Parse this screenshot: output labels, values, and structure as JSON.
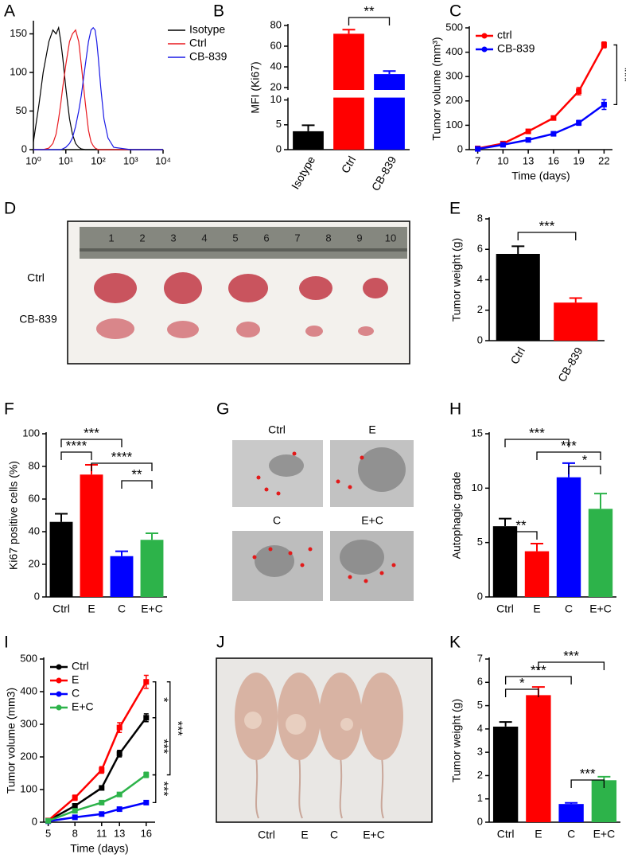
{
  "chart_data": [
    {
      "panel": "A",
      "type": "line",
      "x_scale": "log",
      "x": [
        1,
        1.5,
        2,
        3,
        4,
        5,
        6,
        7,
        8,
        10,
        13,
        16,
        20,
        25,
        30,
        40,
        50,
        60,
        70,
        80,
        90,
        100,
        120,
        150,
        200,
        300,
        1000,
        10000
      ],
      "series": [
        {
          "name": "Isotype",
          "color": "#000000",
          "values": [
            10,
            60,
            100,
            140,
            155,
            150,
            158,
            140,
            120,
            80,
            40,
            20,
            8,
            3,
            1,
            0,
            0,
            0,
            0,
            0,
            0,
            0,
            0,
            0,
            0,
            0,
            0,
            0
          ]
        },
        {
          "name": "Ctrl",
          "color": "#e8191e",
          "values": [
            0,
            0,
            0,
            2,
            8,
            20,
            40,
            60,
            80,
            110,
            140,
            150,
            155,
            140,
            110,
            60,
            25,
            10,
            5,
            2,
            1,
            0,
            0,
            0,
            0,
            0,
            0,
            0
          ]
        },
        {
          "name": "CB-839",
          "color": "#1a1ae6",
          "values": [
            0,
            0,
            0,
            0,
            0,
            0,
            0,
            0,
            1,
            3,
            8,
            15,
            30,
            50,
            70,
            110,
            140,
            155,
            158,
            155,
            140,
            120,
            80,
            40,
            15,
            3,
            0,
            0
          ]
        }
      ],
      "xlim": [
        1,
        10000
      ],
      "xticks": [
        {
          "value": 1,
          "label": "10⁰"
        },
        {
          "value": 10,
          "label": "10¹"
        },
        {
          "value": 100,
          "label": "10²"
        },
        {
          "value": 1000,
          "label": "10³"
        },
        {
          "value": 10000,
          "label": "10⁴"
        }
      ],
      "ylim": [
        0,
        165
      ],
      "yticks": [
        0,
        50,
        100,
        150
      ],
      "legend": "upper right"
    },
    {
      "panel": "B",
      "type": "bar",
      "ylabel": "MFI (Ki67)",
      "categories": [
        "Isotype",
        "Ctrl",
        "CB-839"
      ],
      "values": [
        3.7,
        72,
        33
      ],
      "errors": [
        1.2,
        4,
        3
      ],
      "colors": [
        "#000000",
        "#ff0000",
        "#0000ff"
      ],
      "ylim": [
        0,
        80
      ],
      "ybreak": [
        10,
        20
      ],
      "yticks": [
        0,
        5,
        10,
        20,
        40,
        60,
        80
      ],
      "annotations": [
        "**"
      ]
    },
    {
      "panel": "C",
      "type": "line",
      "xlabel": "Time (days)",
      "ylabel": "Tumor volume (mm³)",
      "markers": true,
      "x": [
        7,
        10,
        13,
        16,
        19,
        22
      ],
      "series": [
        {
          "name": "ctrl",
          "color": "#ff0000",
          "values": [
            5,
            25,
            75,
            130,
            240,
            430
          ],
          "errors": [
            2,
            3,
            5,
            8,
            15,
            12
          ]
        },
        {
          "name": "CB-839",
          "color": "#0000ff",
          "values": [
            3,
            20,
            40,
            65,
            110,
            185
          ],
          "errors": [
            2,
            3,
            4,
            6,
            10,
            20
          ]
        }
      ],
      "xlim": [
        6,
        23
      ],
      "xticks": [
        7,
        10,
        13,
        16,
        19,
        22
      ],
      "ylim": [
        0,
        500
      ],
      "yticks": [
        0,
        100,
        200,
        300,
        400,
        500
      ],
      "legend": "upper left",
      "annotations": [
        "***"
      ]
    },
    {
      "panel": "E",
      "type": "bar",
      "ylabel": "Tumor weight (g)",
      "categories": [
        "Ctrl",
        "CB-839"
      ],
      "values": [
        5.7,
        2.5
      ],
      "errors": [
        0.5,
        0.3
      ],
      "colors": [
        "#000000",
        "#ff0000"
      ],
      "ylim": [
        0,
        8
      ],
      "yticks": [
        0,
        2,
        4,
        6,
        8
      ],
      "annotations": [
        "***"
      ]
    },
    {
      "panel": "F",
      "type": "bar",
      "ylabel": "Ki67 positive cells (%)",
      "categories": [
        "Ctrl",
        "E",
        "C",
        "E+C"
      ],
      "values": [
        46,
        75,
        25,
        35
      ],
      "errors": [
        5,
        6,
        3,
        4
      ],
      "colors": [
        "#000000",
        "#ff0000",
        "#0000ff",
        "#2db34a"
      ],
      "ylim": [
        0,
        100
      ],
      "yticks": [
        0,
        20,
        40,
        60,
        80,
        100
      ],
      "annotations": [
        "***",
        "****",
        "****",
        "**"
      ]
    },
    {
      "panel": "H",
      "type": "bar",
      "ylabel": "Autophagic grade",
      "categories": [
        "Ctrl",
        "E",
        "C",
        "E+C"
      ],
      "values": [
        6.5,
        4.2,
        11,
        8.1
      ],
      "errors": [
        0.7,
        0.7,
        1.3,
        1.4
      ],
      "colors": [
        "#000000",
        "#ff0000",
        "#0000ff",
        "#2db34a"
      ],
      "ylim": [
        0,
        15
      ],
      "yticks": [
        0,
        5,
        10,
        15
      ],
      "annotations": [
        "***",
        "***",
        "*",
        "**"
      ]
    },
    {
      "panel": "I",
      "type": "line",
      "xlabel": "Time (days)",
      "ylabel": "Tumor volume (mm3)",
      "markers": true,
      "x": [
        5,
        8,
        11,
        13,
        16
      ],
      "series": [
        {
          "name": "Ctrl",
          "color": "#000000",
          "values": [
            5,
            50,
            105,
            210,
            320
          ],
          "errors": [
            2,
            5,
            6,
            10,
            12
          ]
        },
        {
          "name": "E",
          "color": "#ff0000",
          "values": [
            5,
            75,
            160,
            290,
            430
          ],
          "errors": [
            2,
            8,
            10,
            15,
            20
          ]
        },
        {
          "name": "C",
          "color": "#0000ff",
          "values": [
            3,
            15,
            25,
            40,
            60
          ],
          "errors": [
            1,
            2,
            3,
            4,
            5
          ]
        },
        {
          "name": "E+C",
          "color": "#2db34a",
          "values": [
            4,
            35,
            60,
            85,
            145
          ],
          "errors": [
            1,
            4,
            5,
            6,
            8
          ]
        }
      ],
      "xlim": [
        4.5,
        17
      ],
      "xticks": [
        5,
        8,
        11,
        13,
        16
      ],
      "ylim": [
        0,
        500
      ],
      "yticks": [
        0,
        100,
        200,
        300,
        400,
        500
      ],
      "legend": "upper left",
      "annotations": [
        "*",
        "***",
        "***",
        "***"
      ]
    },
    {
      "panel": "K",
      "type": "bar",
      "ylabel": "Tumor weight (g)",
      "categories": [
        "Ctrl",
        "E",
        "C",
        "E+C"
      ],
      "values": [
        4.1,
        5.45,
        0.78,
        1.8
      ],
      "errors": [
        0.2,
        0.35,
        0.05,
        0.15
      ],
      "colors": [
        "#000000",
        "#ff0000",
        "#0000ff",
        "#2db34a"
      ],
      "ylim": [
        0,
        7
      ],
      "yticks": [
        0,
        1,
        2,
        3,
        4,
        5,
        6,
        7
      ],
      "annotations": [
        "***",
        "***",
        "*",
        "***"
      ]
    }
  ],
  "photos": [
    {
      "panel": "D",
      "labels": [
        "Ctrl",
        "CB-839"
      ],
      "ruler": [
        1,
        2,
        3,
        4,
        5,
        6,
        7,
        8,
        9,
        10
      ]
    },
    {
      "panel": "G",
      "labels": [
        "Ctrl",
        "E",
        "C",
        "E+C"
      ]
    },
    {
      "panel": "J",
      "labels": [
        "Ctrl",
        "E",
        "C",
        "E+C"
      ]
    }
  ]
}
